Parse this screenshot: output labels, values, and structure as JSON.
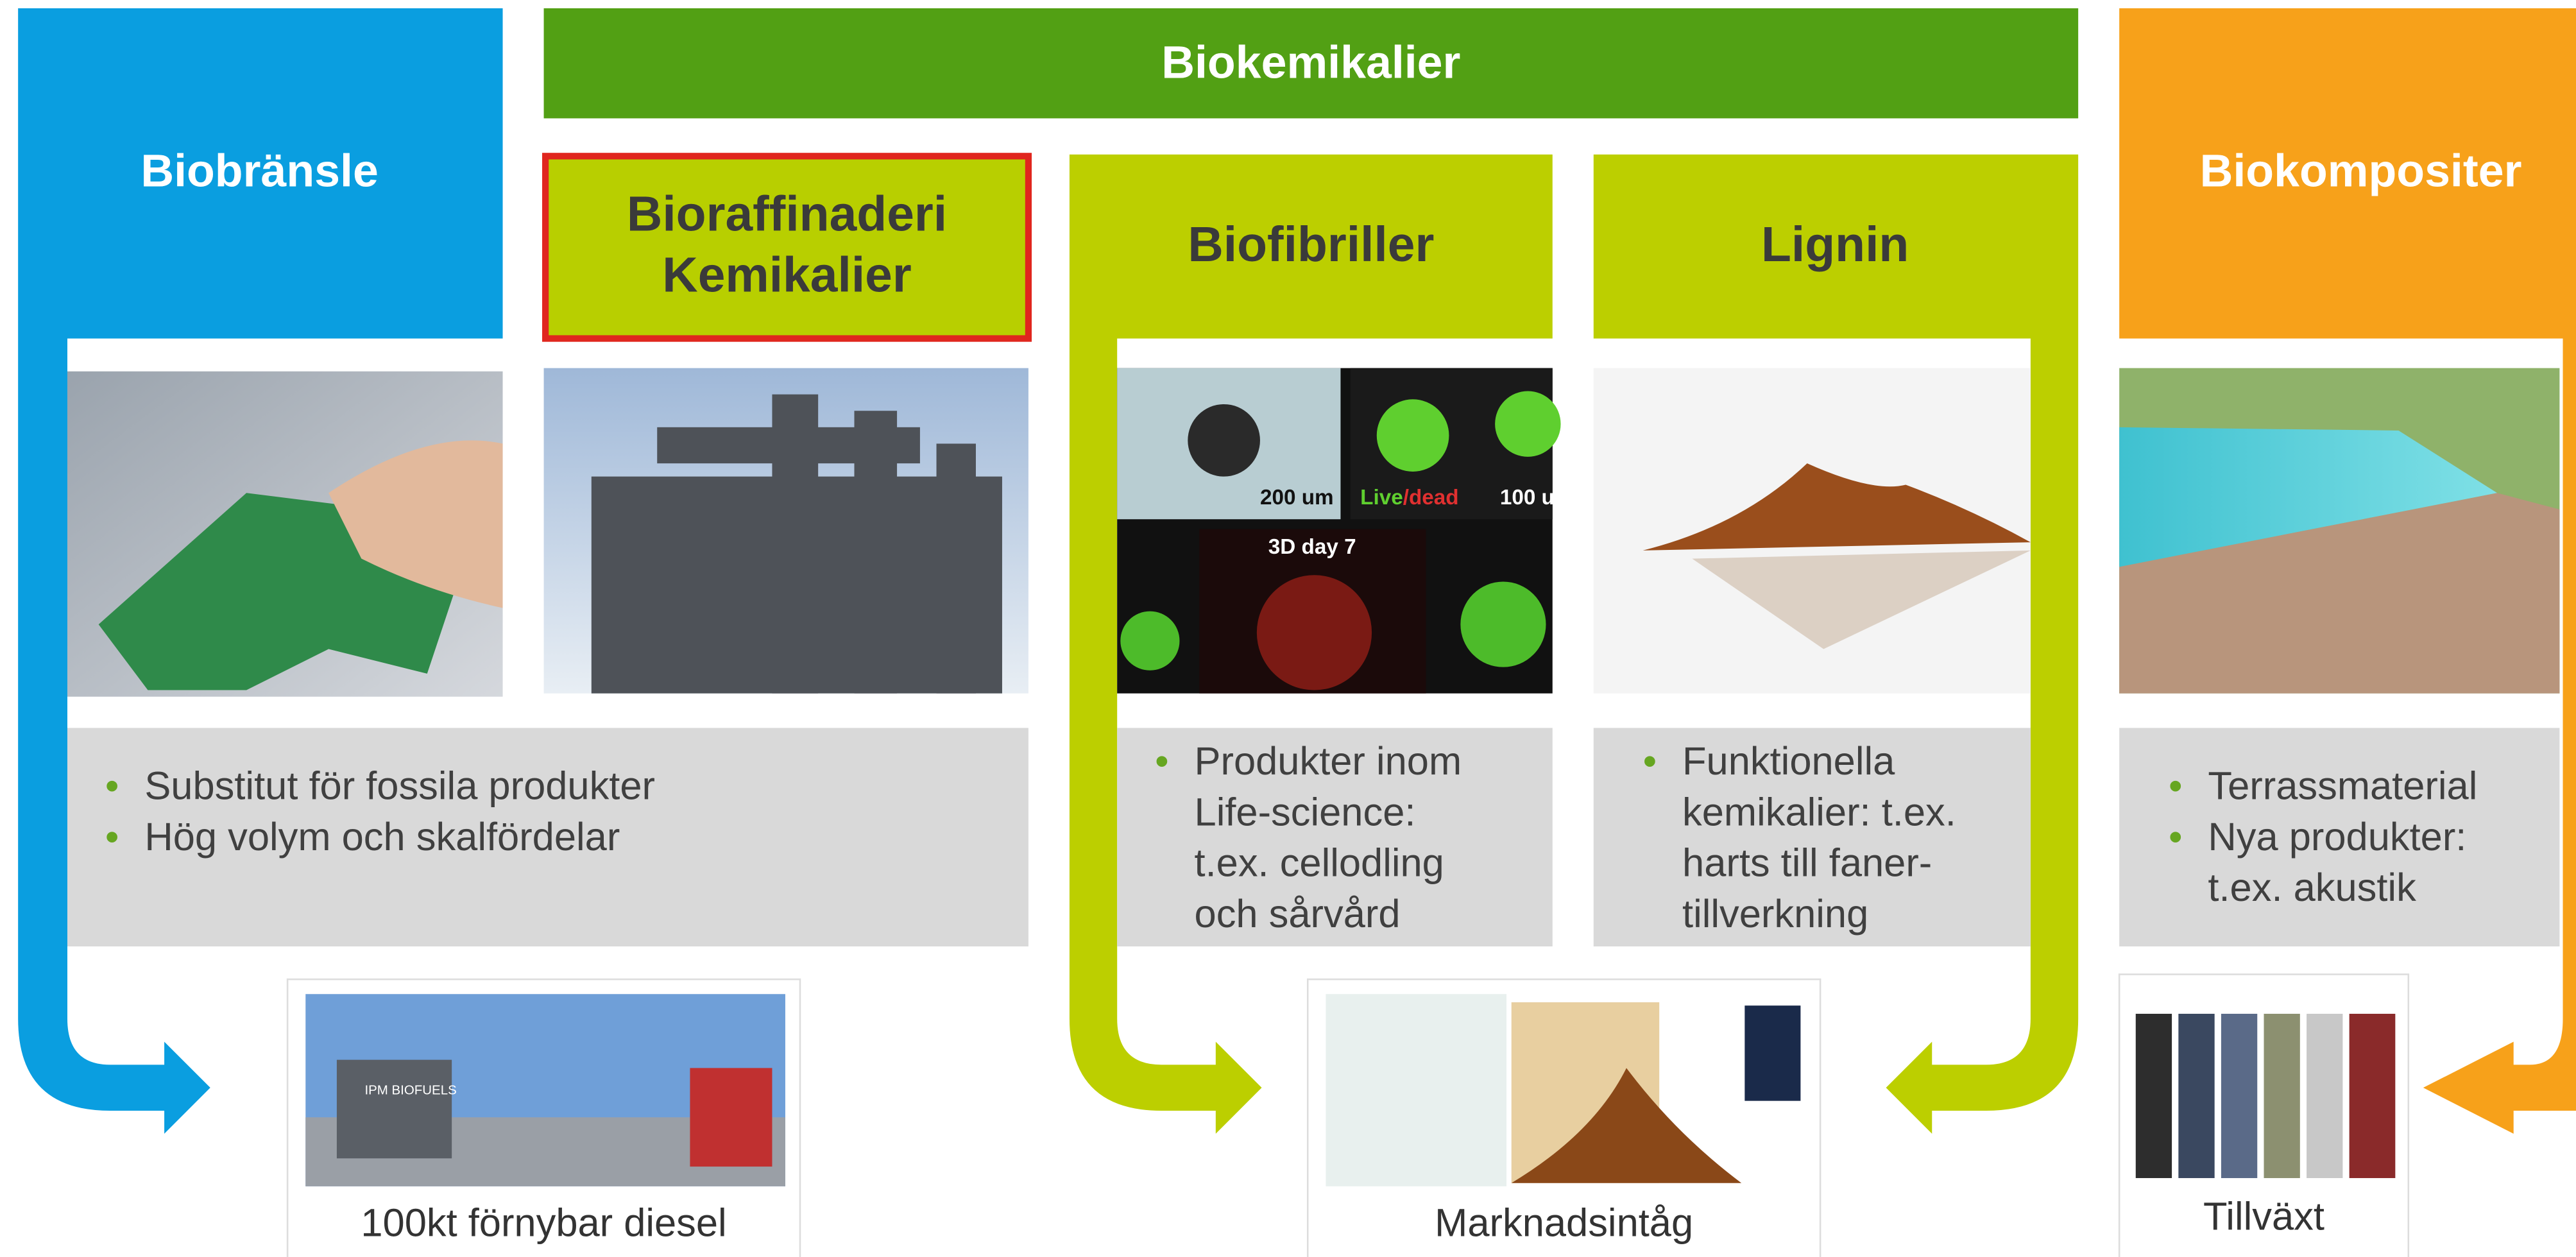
{
  "banner": "Biokemikalier",
  "columns": [
    {
      "title": [
        "Biobränsle"
      ]
    },
    {
      "title": [
        "Bioraffinaderi",
        "Kemikalier"
      ]
    },
    {
      "title": [
        "Biofibriller"
      ]
    },
    {
      "title": [
        "Lignin"
      ]
    },
    {
      "title": [
        "Biokompositer"
      ]
    }
  ],
  "image_texts": [
    "200 um",
    "Live",
    "/dead",
    "100 u",
    "3D day 7",
    "IPM BIOFUELS"
  ],
  "boxes": [
    {
      "bullets": [
        [
          "Substitut för fossila produkter"
        ],
        [
          "Hög volym och skalfördelar"
        ]
      ]
    },
    {
      "bullets": [
        [
          "Produkter inom",
          "Life-science:",
          "t.ex. cellodling",
          "och sårvård"
        ]
      ]
    },
    {
      "bullets": [
        [
          "Funktionella",
          "kemikalier: t.ex.",
          "harts till faner-",
          "tillverkning"
        ]
      ]
    },
    {
      "bullets": [
        [
          "Terrassmaterial"
        ],
        [
          "Nya produkter:",
          "t.ex. akustik"
        ]
      ]
    }
  ],
  "outcomes": [
    "100kt förnybar diesel",
    "Marknadsintåg",
    "Tillväxt"
  ]
}
